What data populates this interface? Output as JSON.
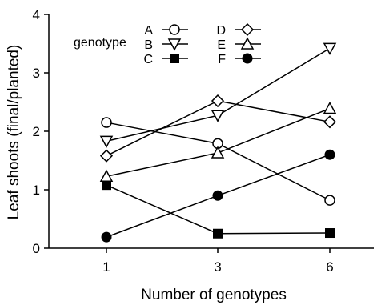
{
  "chart_data": {
    "type": "line",
    "title": "",
    "xlabel": "Number of genotypes",
    "ylabel": "Leaf shoots (final/planted)",
    "categories": [
      "1",
      "3",
      "6"
    ],
    "ylim": [
      0,
      4
    ],
    "yticks": [
      "0",
      "1",
      "2",
      "3",
      "4"
    ],
    "grid": false,
    "legend_title": "genotype",
    "legend_position": "top-left",
    "series": [
      {
        "name": "A",
        "marker": "open-circle",
        "values": [
          2.15,
          1.79,
          0.82
        ]
      },
      {
        "name": "B",
        "marker": "open-triangle-down",
        "values": [
          1.83,
          2.27,
          3.42
        ]
      },
      {
        "name": "C",
        "marker": "filled-square",
        "values": [
          1.08,
          0.25,
          0.26
        ]
      },
      {
        "name": "D",
        "marker": "open-diamond",
        "values": [
          1.58,
          2.52,
          2.16
        ]
      },
      {
        "name": "E",
        "marker": "open-triangle-up",
        "values": [
          1.23,
          1.63,
          2.39
        ]
      },
      {
        "name": "F",
        "marker": "filled-circle",
        "values": [
          0.19,
          0.9,
          1.6
        ]
      }
    ],
    "line_color": "#000000"
  }
}
